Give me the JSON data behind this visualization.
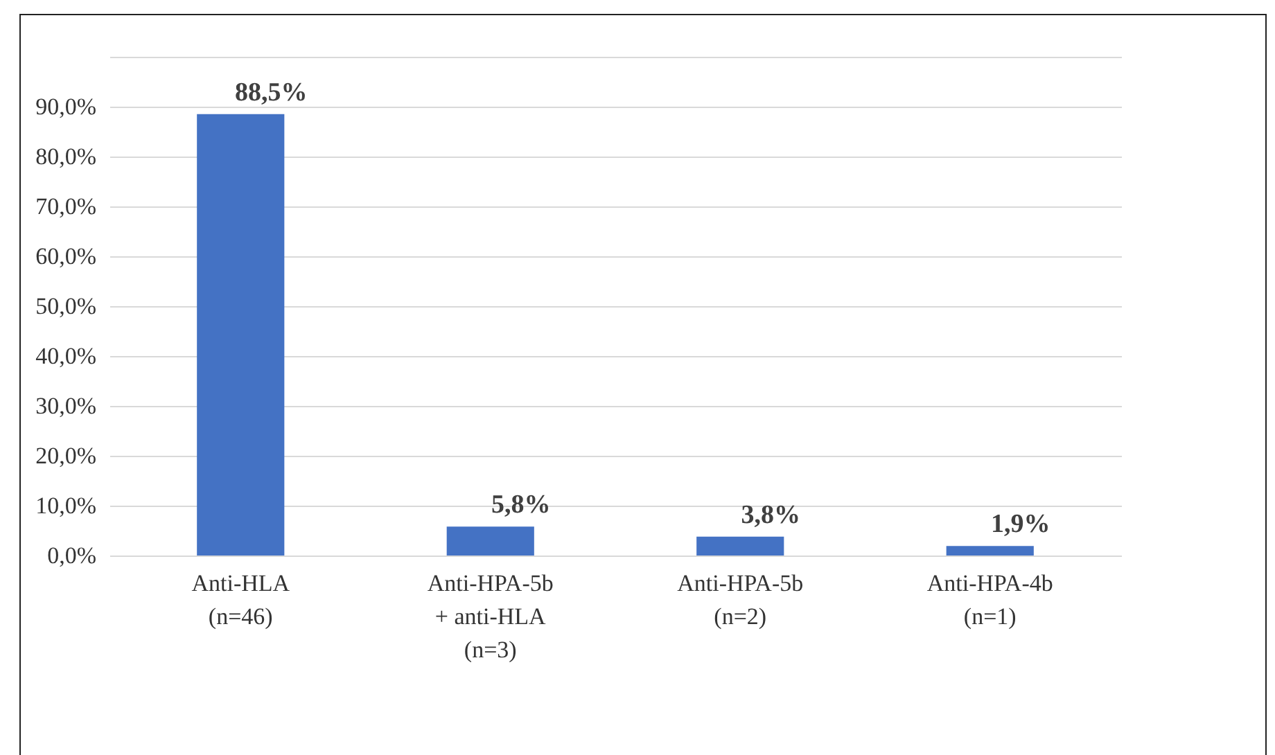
{
  "chart_data": {
    "type": "bar",
    "categories": [
      "Anti-HLA\n(n=46)",
      "Anti-HPA-5b\n+ anti-HLA\n(n=3)",
      "Anti-HPA-5b\n(n=2)",
      "Anti-HPA-4b\n(n=1)"
    ],
    "values": [
      88.5,
      5.8,
      3.8,
      1.9
    ],
    "color": "#4472c4",
    "value_labels": [
      "88,5%",
      "5,8%",
      "3,8%",
      "1,9%"
    ],
    "ylim": [
      0,
      100
    ],
    "yticks": [
      {
        "value": 0,
        "label": "0,0%"
      },
      {
        "value": 10,
        "label": "10,0%"
      },
      {
        "value": 20,
        "label": "20,0%"
      },
      {
        "value": 30,
        "label": "30,0%"
      },
      {
        "value": 40,
        "label": "40,0%"
      },
      {
        "value": 50,
        "label": "50,0%"
      },
      {
        "value": 60,
        "label": "60,0%"
      },
      {
        "value": 70,
        "label": "70,0%"
      },
      {
        "value": 80,
        "label": "80,0%"
      },
      {
        "value": 90,
        "label": "90,0%"
      },
      {
        "value": 100,
        "label": null
      }
    ],
    "grid": "y"
  }
}
